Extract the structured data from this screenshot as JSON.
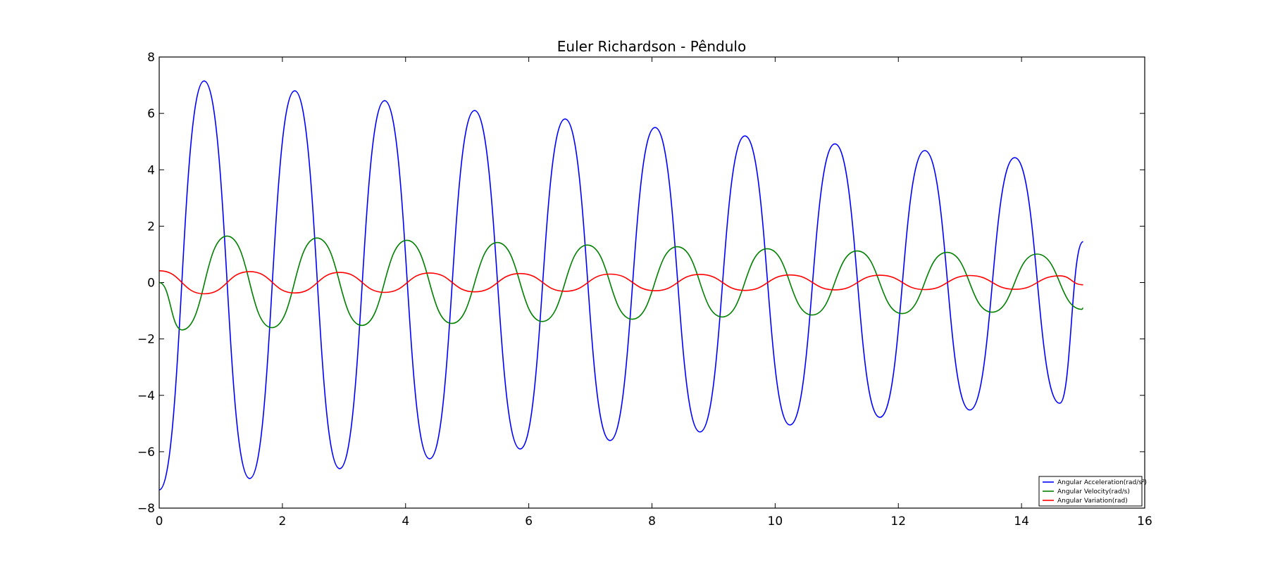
{
  "chart_data": {
    "type": "line",
    "title": "Euler Richardson - Pêndulo",
    "xlabel": "",
    "ylabel": "",
    "xlim": [
      0,
      16
    ],
    "ylim": [
      -8,
      8
    ],
    "x_ticks": [
      0,
      2,
      4,
      6,
      8,
      10,
      12,
      14,
      16
    ],
    "y_ticks": [
      -8,
      -6,
      -4,
      -2,
      0,
      2,
      4,
      6,
      8
    ],
    "x_tick_labels": [
      "0",
      "2",
      "4",
      "6",
      "8",
      "10",
      "12",
      "14",
      "16"
    ],
    "y_tick_labels": [
      "−8",
      "−6",
      "−4",
      "−2",
      "0",
      "2",
      "4",
      "6",
      "8"
    ],
    "grid": false,
    "legend_position": "bottom-right",
    "x_range": [
      0,
      15
    ],
    "series": [
      {
        "name": "Angular Acceleration(rad/s²)",
        "color": "#0000ff",
        "values": [
          [
            0,
            -7.35
          ],
          [
            0.73,
            7.15
          ],
          [
            1.47,
            -6.95
          ],
          [
            2.2,
            6.8
          ],
          [
            2.93,
            -6.6
          ],
          [
            3.66,
            6.45
          ],
          [
            4.39,
            -6.25
          ],
          [
            5.12,
            6.1
          ],
          [
            5.86,
            -5.9
          ],
          [
            6.59,
            5.8
          ],
          [
            7.32,
            -5.6
          ],
          [
            8.05,
            5.5
          ],
          [
            8.78,
            -5.3
          ],
          [
            9.51,
            5.2
          ],
          [
            10.24,
            -5.05
          ],
          [
            10.97,
            4.92
          ],
          [
            11.7,
            -4.78
          ],
          [
            12.43,
            4.68
          ],
          [
            13.16,
            -4.52
          ],
          [
            13.89,
            4.43
          ],
          [
            14.62,
            -4.28
          ],
          [
            15,
            1.45
          ]
        ]
      },
      {
        "name": "Angular Velocity(rad/s)",
        "color": "#008000",
        "values": [
          [
            0,
            0.0
          ],
          [
            0.37,
            -1.68
          ],
          [
            1.1,
            1.65
          ],
          [
            1.83,
            -1.6
          ],
          [
            2.56,
            1.58
          ],
          [
            3.29,
            -1.52
          ],
          [
            4.02,
            1.5
          ],
          [
            4.75,
            -1.45
          ],
          [
            5.49,
            1.42
          ],
          [
            6.22,
            -1.38
          ],
          [
            6.95,
            1.33
          ],
          [
            7.68,
            -1.3
          ],
          [
            8.41,
            1.27
          ],
          [
            9.14,
            -1.22
          ],
          [
            9.87,
            1.2
          ],
          [
            10.6,
            -1.15
          ],
          [
            11.33,
            1.12
          ],
          [
            12.06,
            -1.1
          ],
          [
            12.79,
            1.07
          ],
          [
            13.52,
            -1.05
          ],
          [
            14.25,
            1.01
          ],
          [
            14.98,
            -0.95
          ],
          [
            15,
            -0.9
          ]
        ]
      },
      {
        "name": "Angular Variation(rad)",
        "color": "#ff0000",
        "values": [
          [
            0,
            0.42
          ],
          [
            0.73,
            -0.4
          ],
          [
            1.47,
            0.39
          ],
          [
            2.2,
            -0.37
          ],
          [
            2.93,
            0.36
          ],
          [
            3.66,
            -0.35
          ],
          [
            4.39,
            0.34
          ],
          [
            5.12,
            -0.33
          ],
          [
            5.86,
            0.32
          ],
          [
            6.59,
            -0.31
          ],
          [
            7.32,
            0.3
          ],
          [
            8.05,
            -0.29
          ],
          [
            8.78,
            0.29
          ],
          [
            9.51,
            -0.28
          ],
          [
            10.24,
            0.27
          ],
          [
            10.97,
            -0.26
          ],
          [
            11.7,
            0.26
          ],
          [
            12.43,
            -0.25
          ],
          [
            13.16,
            0.25
          ],
          [
            13.89,
            -0.24
          ],
          [
            14.62,
            0.24
          ],
          [
            15,
            -0.08
          ]
        ]
      }
    ]
  }
}
